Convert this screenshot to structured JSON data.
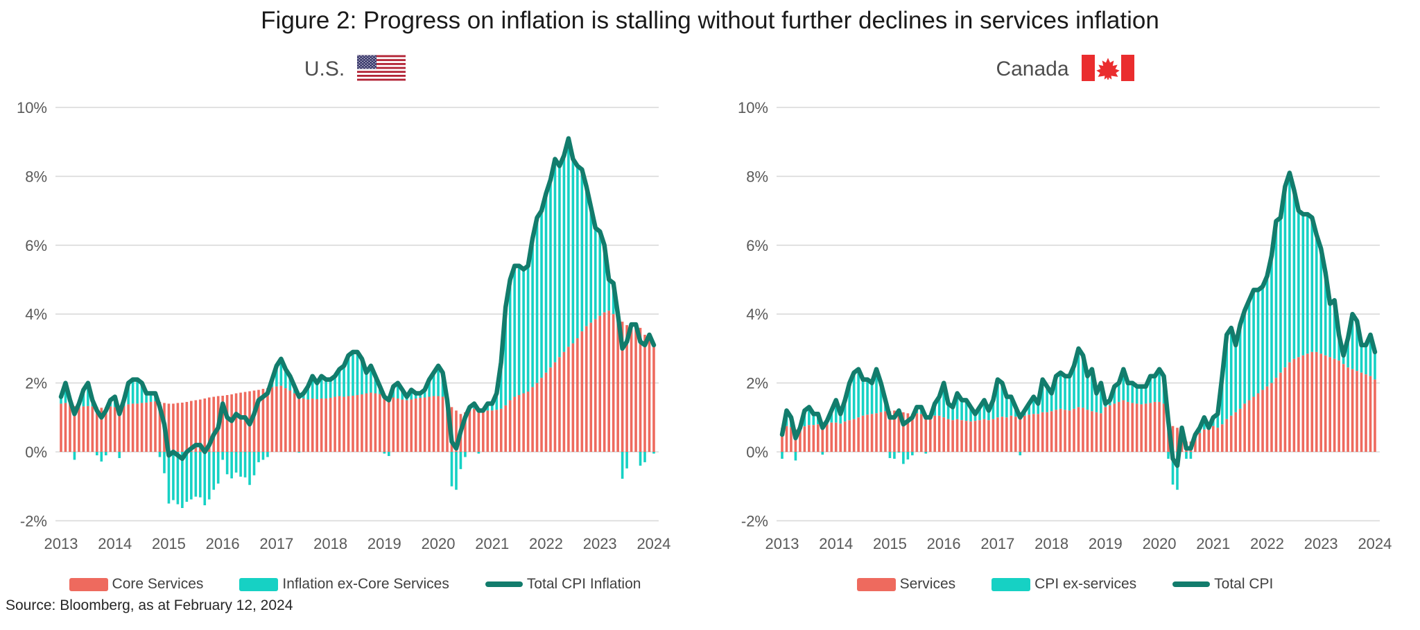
{
  "title": "Figure 2: Progress on inflation is stalling without further declines in services inflation",
  "source_note": "Source: Bloomberg, as at February 12, 2024",
  "colors": {
    "bar_services": "#EE6A5E",
    "bar_ex_services": "#16D1C4",
    "line_total": "#127C6C",
    "gridline": "#D9D9D9",
    "axis_label": "#595959",
    "legend_text": "#404040",
    "title_text": "#1A1A1A",
    "subtitle_text": "#4D4D4D",
    "us_flag_red": "#B22234",
    "us_flag_blue": "#3C3B6E",
    "canada_flag_red": "#EA2D2E"
  },
  "charts": [
    {
      "id": "us",
      "subtitle": "U.S.",
      "flag": "us-flag",
      "legend": [
        {
          "label": "Core Services",
          "swatch": "bar",
          "color_key": "bar_services"
        },
        {
          "label": "Inflation ex-Core Services",
          "swatch": "bar",
          "color_key": "bar_ex_services"
        },
        {
          "label": "Total CPI Inflation",
          "swatch": "line",
          "color_key": "line_total"
        }
      ],
      "chart_data": {
        "type": "bar",
        "subtype": "stacked monthly contributions with total line overlay",
        "frequency": "monthly",
        "x_start": "2013-01",
        "x_end": "2024-01",
        "xticks": [
          "2013",
          "2014",
          "2015",
          "2016",
          "2017",
          "2018",
          "2019",
          "2020",
          "2021",
          "2022",
          "2023",
          "2024"
        ],
        "yticks": [
          "10%",
          "8%",
          "6%",
          "4%",
          "2%",
          "0%",
          "-2%"
        ],
        "ylim": [
          -2,
          10
        ],
        "grid": "horizontal",
        "legend_position": "bottom",
        "series": [
          {
            "name": "Core Services",
            "type": "bar",
            "unit": "% contribution, y/y",
            "values": [
              1.4,
              1.42,
              1.38,
              1.33,
              1.3,
              1.32,
              1.33,
              1.32,
              1.3,
              1.28,
              1.3,
              1.32,
              1.3,
              1.28,
              1.33,
              1.38,
              1.4,
              1.4,
              1.42,
              1.43,
              1.45,
              1.47,
              1.45,
              1.42,
              1.4,
              1.4,
              1.42,
              1.43,
              1.45,
              1.48,
              1.5,
              1.52,
              1.55,
              1.58,
              1.6,
              1.62,
              1.63,
              1.65,
              1.67,
              1.7,
              1.72,
              1.74,
              1.76,
              1.78,
              1.8,
              1.83,
              1.85,
              1.88,
              1.9,
              1.92,
              1.85,
              1.78,
              1.7,
              1.62,
              1.55,
              1.52,
              1.55,
              1.53,
              1.55,
              1.55,
              1.57,
              1.6,
              1.62,
              1.6,
              1.62,
              1.63,
              1.65,
              1.67,
              1.7,
              1.72,
              1.7,
              1.68,
              1.65,
              1.62,
              1.58,
              1.55,
              1.52,
              1.5,
              1.52,
              1.55,
              1.57,
              1.58,
              1.6,
              1.62,
              1.62,
              1.6,
              1.5,
              1.3,
              1.2,
              1.1,
              1.15,
              1.3,
              1.25,
              1.25,
              1.2,
              1.2,
              1.2,
              1.22,
              1.25,
              1.35,
              1.5,
              1.6,
              1.65,
              1.7,
              1.75,
              1.88,
              2.0,
              2.15,
              2.3,
              2.45,
              2.6,
              2.75,
              2.9,
              3.05,
              3.15,
              3.3,
              3.5,
              3.65,
              3.75,
              3.85,
              3.95,
              4.05,
              4.1,
              4.0,
              3.9,
              3.78,
              3.68,
              3.58,
              3.55,
              3.6,
              3.4,
              3.3,
              3.15
            ]
          },
          {
            "name": "Inflation ex-Core Services",
            "type": "bar",
            "unit": "% contribution, y/y",
            "derived_as": "Total CPI Inflation minus Core Services"
          },
          {
            "name": "Total CPI Inflation",
            "type": "line",
            "unit": "% y/y",
            "values": [
              1.6,
              2.0,
              1.5,
              1.1,
              1.4,
              1.8,
              2.0,
              1.5,
              1.2,
              1.0,
              1.2,
              1.5,
              1.6,
              1.1,
              1.5,
              2.0,
              2.1,
              2.1,
              2.0,
              1.7,
              1.7,
              1.7,
              1.3,
              0.8,
              -0.1,
              0.0,
              -0.1,
              -0.2,
              0.0,
              0.1,
              0.2,
              0.2,
              0.0,
              0.2,
              0.5,
              0.7,
              1.4,
              1.0,
              0.9,
              1.1,
              1.0,
              1.0,
              0.8,
              1.1,
              1.5,
              1.6,
              1.7,
              2.1,
              2.5,
              2.7,
              2.4,
              2.2,
              1.9,
              1.6,
              1.7,
              1.9,
              2.2,
              2.0,
              2.2,
              2.1,
              2.1,
              2.2,
              2.4,
              2.5,
              2.8,
              2.9,
              2.9,
              2.7,
              2.3,
              2.5,
              2.2,
              1.9,
              1.6,
              1.5,
              1.9,
              2.0,
              1.8,
              1.6,
              1.8,
              1.7,
              1.7,
              1.8,
              2.1,
              2.3,
              2.5,
              2.3,
              1.5,
              0.3,
              0.1,
              0.6,
              1.0,
              1.3,
              1.4,
              1.2,
              1.2,
              1.4,
              1.4,
              1.7,
              2.6,
              4.2,
              5.0,
              5.4,
              5.4,
              5.3,
              5.4,
              6.2,
              6.8,
              7.0,
              7.5,
              7.9,
              8.5,
              8.3,
              8.6,
              9.1,
              8.5,
              8.3,
              8.2,
              7.7,
              7.1,
              6.5,
              6.4,
              6.0,
              5.0,
              4.9,
              4.0,
              3.0,
              3.2,
              3.7,
              3.7,
              3.2,
              3.1,
              3.4,
              3.1
            ]
          }
        ]
      }
    },
    {
      "id": "ca",
      "subtitle": "Canada",
      "flag": "canada-flag",
      "legend": [
        {
          "label": "Services",
          "swatch": "bar",
          "color_key": "bar_services"
        },
        {
          "label": "CPI ex-services",
          "swatch": "bar",
          "color_key": "bar_ex_services"
        },
        {
          "label": "Total CPI",
          "swatch": "line",
          "color_key": "line_total"
        }
      ],
      "chart_data": {
        "type": "bar",
        "subtype": "stacked monthly contributions with total line overlay",
        "frequency": "monthly",
        "x_start": "2013-01",
        "x_end": "2024-01",
        "xticks": [
          "2013",
          "2014",
          "2015",
          "2016",
          "2017",
          "2018",
          "2019",
          "2020",
          "2021",
          "2022",
          "2023",
          "2024"
        ],
        "yticks": [
          "10%",
          "8%",
          "6%",
          "4%",
          "2%",
          "0%",
          "-2%"
        ],
        "ylim": [
          -2,
          10
        ],
        "grid": "horizontal",
        "legend_position": "bottom",
        "series": [
          {
            "name": "Services",
            "type": "bar",
            "unit": "% contribution, y/y",
            "values": [
              0.7,
              0.75,
              0.72,
              0.65,
              0.68,
              0.74,
              0.78,
              0.78,
              0.8,
              0.78,
              0.8,
              0.85,
              0.85,
              0.82,
              0.88,
              0.92,
              0.95,
              1.0,
              1.05,
              1.08,
              1.1,
              1.12,
              1.15,
              1.18,
              1.18,
              1.2,
              1.22,
              1.15,
              1.12,
              1.1,
              1.12,
              1.1,
              1.05,
              1.0,
              1.05,
              1.05,
              1.0,
              0.95,
              0.92,
              0.95,
              0.92,
              0.9,
              0.88,
              0.9,
              0.92,
              0.95,
              0.92,
              0.95,
              1.0,
              1.02,
              1.0,
              1.05,
              1.02,
              1.1,
              1.05,
              1.08,
              1.1,
              1.1,
              1.15,
              1.15,
              1.18,
              1.22,
              1.25,
              1.22,
              1.2,
              1.25,
              1.3,
              1.28,
              1.22,
              1.18,
              1.15,
              1.12,
              1.3,
              1.35,
              1.4,
              1.45,
              1.5,
              1.45,
              1.42,
              1.4,
              1.38,
              1.4,
              1.42,
              1.45,
              1.45,
              1.4,
              1.1,
              0.75,
              0.7,
              0.55,
              0.3,
              0.3,
              0.4,
              0.55,
              0.65,
              0.7,
              0.75,
              0.7,
              0.8,
              0.95,
              1.05,
              1.15,
              1.25,
              1.4,
              1.5,
              1.6,
              1.7,
              1.8,
              1.9,
              2.0,
              2.15,
              2.3,
              2.45,
              2.6,
              2.7,
              2.75,
              2.8,
              2.85,
              2.9,
              2.9,
              2.85,
              2.8,
              2.75,
              2.7,
              2.65,
              2.55,
              2.45,
              2.4,
              2.35,
              2.3,
              2.25,
              2.2,
              2.1
            ]
          },
          {
            "name": "CPI ex-services",
            "type": "bar",
            "unit": "% contribution, y/y",
            "derived_as": "Total CPI minus Services"
          },
          {
            "name": "Total CPI",
            "type": "line",
            "unit": "% y/y",
            "values": [
              0.5,
              1.2,
              1.0,
              0.4,
              0.7,
              1.2,
              1.3,
              1.1,
              1.1,
              0.7,
              0.9,
              1.2,
              1.5,
              1.1,
              1.5,
              2.0,
              2.3,
              2.4,
              2.1,
              2.1,
              2.0,
              2.4,
              2.0,
              1.5,
              1.0,
              1.0,
              1.2,
              0.8,
              0.9,
              1.0,
              1.3,
              1.3,
              1.0,
              1.0,
              1.4,
              1.6,
              2.0,
              1.4,
              1.3,
              1.7,
              1.5,
              1.5,
              1.3,
              1.1,
              1.3,
              1.5,
              1.2,
              1.5,
              2.1,
              2.0,
              1.6,
              1.6,
              1.3,
              1.0,
              1.2,
              1.4,
              1.6,
              1.4,
              2.1,
              1.9,
              1.7,
              2.2,
              2.3,
              2.2,
              2.2,
              2.5,
              3.0,
              2.8,
              2.2,
              2.4,
              1.7,
              2.0,
              1.4,
              1.5,
              1.9,
              2.0,
              2.4,
              2.0,
              2.0,
              1.9,
              1.9,
              1.9,
              2.2,
              2.2,
              2.4,
              2.2,
              0.9,
              -0.2,
              -0.4,
              0.7,
              0.1,
              0.1,
              0.5,
              0.7,
              1.0,
              0.7,
              1.0,
              1.1,
              2.2,
              3.4,
              3.6,
              3.1,
              3.7,
              4.1,
              4.4,
              4.7,
              4.7,
              4.8,
              5.1,
              5.7,
              6.7,
              6.8,
              7.7,
              8.1,
              7.6,
              7.0,
              6.9,
              6.9,
              6.8,
              6.3,
              5.9,
              5.2,
              4.3,
              4.4,
              3.4,
              2.8,
              3.3,
              4.0,
              3.8,
              3.1,
              3.1,
              3.4,
              2.9
            ]
          }
        ]
      }
    }
  ]
}
